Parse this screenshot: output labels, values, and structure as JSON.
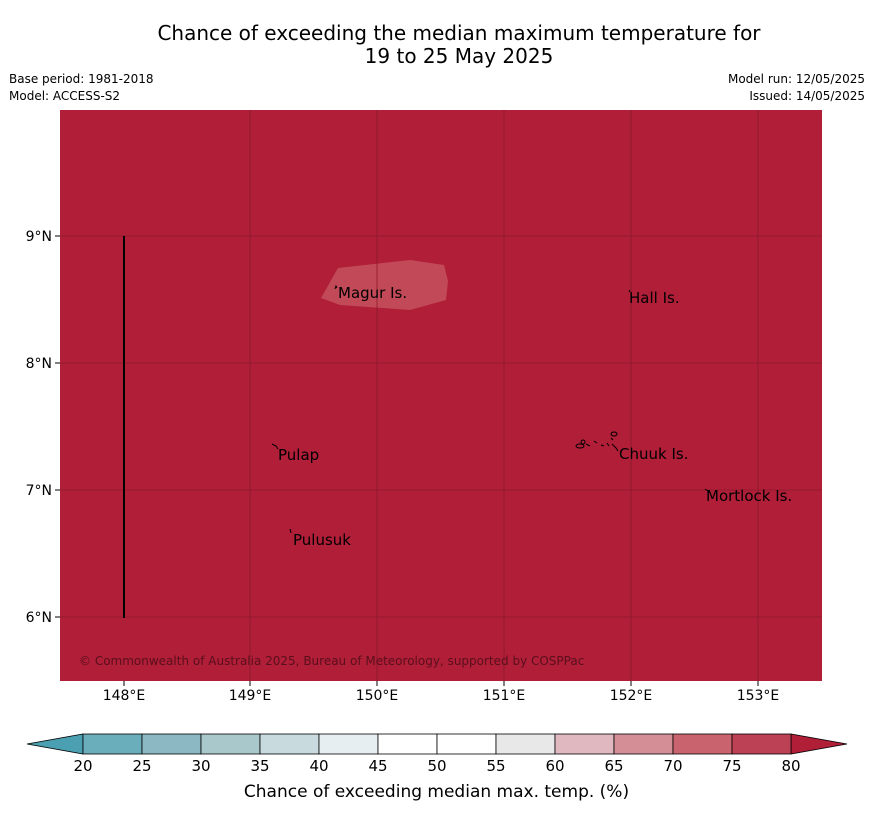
{
  "header": {
    "title_line1": "Chance of exceeding the median maximum temperature for",
    "title_line2": "19 to 25 May 2025",
    "base_period": "Base period: 1981-2018",
    "model": "Model: ACCESS-S2",
    "model_run": "Model run: 12/05/2025",
    "issued": "Issued: 14/05/2025"
  },
  "map": {
    "lat_ticks": [
      "9°N",
      "8°N",
      "7°N",
      "6°N"
    ],
    "lon_ticks": [
      "148°E",
      "149°E",
      "150°E",
      "151°E",
      "152°E",
      "153°E"
    ],
    "background_color": "#b01e38",
    "patch_color": "#c24a58",
    "places": [
      {
        "id": "magur",
        "name": "Magur Is."
      },
      {
        "id": "hall",
        "name": "Hall Is."
      },
      {
        "id": "pulap",
        "name": "Pulap"
      },
      {
        "id": "chuuk",
        "name": "Chuuk Is."
      },
      {
        "id": "mortlock",
        "name": "Mortlock Is."
      },
      {
        "id": "pulusuk",
        "name": "Pulusuk"
      }
    ],
    "copyright": "© Commonwealth of Australia 2025, Bureau of Meteorology, supported by COSPPac"
  },
  "colorbar": {
    "label": "Chance of exceeding median max. temp. (%)",
    "ticks": [
      "20",
      "25",
      "30",
      "35",
      "40",
      "45",
      "50",
      "55",
      "60",
      "65",
      "70",
      "75",
      "80"
    ],
    "colors": [
      "#6aadbb",
      "#8bb8c2",
      "#a9c8cc",
      "#c9dadf",
      "#e7eef1",
      "#ffffff",
      "#ffffff",
      "#e8e8e8",
      "#e0b8c0",
      "#d48e96",
      "#c9646f",
      "#bd4155"
    ],
    "low_color": "#4a9fb0",
    "high_color": "#b01e38"
  }
}
